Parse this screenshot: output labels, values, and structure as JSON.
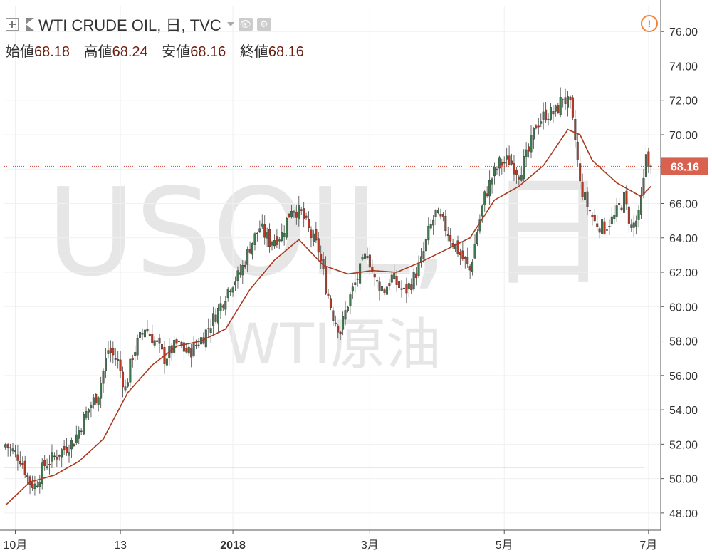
{
  "header": {
    "title": "WTI CRUDE OIL, 日, TVC",
    "ohlc": [
      {
        "label": "始値",
        "value": "68.18"
      },
      {
        "label": "高値",
        "value": "68.24"
      },
      {
        "label": "安値",
        "value": "68.16"
      },
      {
        "label": "終値",
        "value": "68.16"
      }
    ],
    "warning_symbol": "!"
  },
  "watermark": {
    "symbol": "USOIL, 日",
    "name": "WTI原油"
  },
  "price_label": "68.16",
  "colors": {
    "up": "#3d7a4e",
    "down": "#b83a25",
    "ma": "#a83a1f",
    "price_line": "#cf4a3a",
    "price_tag": "#d9614f",
    "warning": "#f0823c",
    "watermark": "#e6e6e6"
  },
  "chart_data": {
    "type": "candlestick",
    "title": "WTI CRUDE OIL, 日, TVC",
    "timeframe": "日",
    "y_ticks": [
      "48.00",
      "50.00",
      "52.00",
      "54.00",
      "56.00",
      "58.00",
      "60.00",
      "62.00",
      "64.00",
      "66.00",
      "68.00",
      "70.00",
      "72.00",
      "74.00",
      "76.00"
    ],
    "ylim": [
      47,
      77.5
    ],
    "x_ticks": [
      {
        "label": "10月",
        "index": 4
      },
      {
        "label": "13",
        "index": 47
      },
      {
        "label": "2018",
        "index": 93
      },
      {
        "label": "3月",
        "index": 149
      },
      {
        "label": "5月",
        "index": 204
      },
      {
        "label": "7月",
        "index": 263
      }
    ],
    "x_range": [
      -0.5,
      268
    ],
    "last_price": 68.16,
    "baseline": 50.65,
    "moving_average_anchors": [
      [
        0,
        48.45
      ],
      [
        10,
        49.8
      ],
      [
        20,
        50.2
      ],
      [
        30,
        51.0
      ],
      [
        40,
        52.3
      ],
      [
        50,
        55.0
      ],
      [
        60,
        56.6
      ],
      [
        70,
        57.7
      ],
      [
        80,
        58.0
      ],
      [
        90,
        58.7
      ],
      [
        100,
        61.0
      ],
      [
        110,
        62.7
      ],
      [
        120,
        63.9
      ],
      [
        130,
        62.4
      ],
      [
        140,
        61.9
      ],
      [
        150,
        62.1
      ],
      [
        160,
        62.0
      ],
      [
        170,
        62.6
      ],
      [
        180,
        63.3
      ],
      [
        190,
        64.0
      ],
      [
        200,
        66.2
      ],
      [
        210,
        67.0
      ],
      [
        220,
        68.2
      ],
      [
        230,
        70.3
      ],
      [
        235,
        70.0
      ],
      [
        240,
        68.5
      ],
      [
        250,
        67.2
      ],
      [
        260,
        66.4
      ],
      [
        264,
        67.0
      ]
    ],
    "close_path_anchors": [
      [
        0,
        52.0
      ],
      [
        6,
        51.2
      ],
      [
        10,
        49.8
      ],
      [
        12,
        49.6
      ],
      [
        16,
        50.8
      ],
      [
        22,
        51.5
      ],
      [
        28,
        52.2
      ],
      [
        33,
        53.8
      ],
      [
        38,
        55.0
      ],
      [
        42,
        57.5
      ],
      [
        46,
        56.8
      ],
      [
        49,
        55.2
      ],
      [
        52,
        57.2
      ],
      [
        57,
        58.8
      ],
      [
        61,
        58.0
      ],
      [
        65,
        57.0
      ],
      [
        70,
        57.8
      ],
      [
        75,
        57.3
      ],
      [
        81,
        58.3
      ],
      [
        87,
        59.8
      ],
      [
        92,
        61.3
      ],
      [
        96,
        61.9
      ],
      [
        100,
        63.5
      ],
      [
        104,
        64.6
      ],
      [
        108,
        63.8
      ],
      [
        113,
        64.2
      ],
      [
        117,
        65.8
      ],
      [
        121,
        65.4
      ],
      [
        125,
        64.1
      ],
      [
        128,
        63.3
      ],
      [
        131,
        61.2
      ],
      [
        134,
        59.5
      ],
      [
        137,
        58.6
      ],
      [
        140,
        60.2
      ],
      [
        144,
        61.7
      ],
      [
        148,
        63.2
      ],
      [
        151,
        61.5
      ],
      [
        155,
        61.0
      ],
      [
        158,
        61.7
      ],
      [
        163,
        60.8
      ],
      [
        166,
        61.4
      ],
      [
        170,
        62.6
      ],
      [
        173,
        64.3
      ],
      [
        176,
        65.4
      ],
      [
        180,
        64.6
      ],
      [
        184,
        63.5
      ],
      [
        187,
        62.8
      ],
      [
        190,
        62.1
      ],
      [
        193,
        64.4
      ],
      [
        196,
        66.4
      ],
      [
        199,
        67.5
      ],
      [
        202,
        68.3
      ],
      [
        206,
        68.5
      ],
      [
        210,
        67.8
      ],
      [
        214,
        69.0
      ],
      [
        217,
        70.6
      ],
      [
        221,
        71.2
      ],
      [
        225,
        71.3
      ],
      [
        228,
        72.2
      ],
      [
        231,
        71.6
      ],
      [
        233,
        69.7
      ],
      [
        235,
        67.1
      ],
      [
        238,
        65.9
      ],
      [
        241,
        64.9
      ],
      [
        245,
        64.6
      ],
      [
        249,
        65.2
      ],
      [
        253,
        66.3
      ],
      [
        256,
        64.6
      ],
      [
        259,
        65.2
      ],
      [
        261,
        67.2
      ],
      [
        262,
        68.9
      ],
      [
        264,
        68.18
      ]
    ]
  }
}
